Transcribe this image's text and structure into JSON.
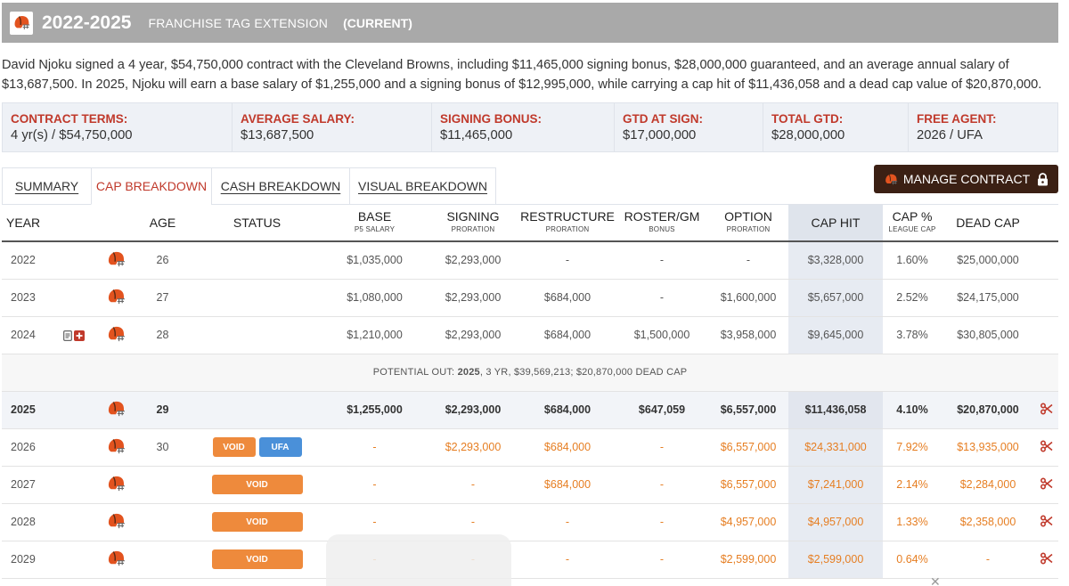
{
  "header": {
    "years": "2022-2025",
    "contract_type": "FRANCHISE TAG EXTENSION",
    "current": "(CURRENT)"
  },
  "description": {
    "line1": "David Njoku signed a 4 year, $54,750,000 contract with the Cleveland Browns, including $11,465,000 signing bonus, $28,000,000 guaranteed, and an average annual salary of",
    "line2": "$13,687,500. In 2025, Njoku will earn a base salary of $1,255,000 and a signing bonus of $12,995,000, while carrying a cap hit of $11,436,058 and a dead cap value of $20,870,000."
  },
  "terms": [
    {
      "label": "CONTRACT TERMS:",
      "value": "4 yr(s) / $54,750,000"
    },
    {
      "label": "AVERAGE SALARY:",
      "value": "$13,687,500"
    },
    {
      "label": "SIGNING BONUS:",
      "value": "$11,465,000"
    },
    {
      "label": "GTD AT SIGN:",
      "value": "$17,000,000"
    },
    {
      "label": "TOTAL GTD:",
      "value": "$28,000,000"
    },
    {
      "label": "FREE AGENT:",
      "value": "2026 / UFA"
    }
  ],
  "tabs": [
    {
      "label": "SUMMARY"
    },
    {
      "label": "CAP BREAKDOWN"
    },
    {
      "label": "CASH BREAKDOWN"
    },
    {
      "label": "VISUAL BREAKDOWN"
    }
  ],
  "manage_button": {
    "label": "MANAGE CONTRACT"
  },
  "columns": {
    "year": "YEAR",
    "age": "AGE",
    "status": "STATUS",
    "base": "BASE",
    "base_sub": "P5 SALARY",
    "signing": "SIGNING",
    "signing_sub": "PRORATION",
    "restructure": "RESTRUCTURE",
    "restructure_sub": "PRORATION",
    "roster": "ROSTER/GM",
    "roster_sub": "BONUS",
    "option": "OPTION",
    "option_sub": "PRORATION",
    "cap_hit": "CAP HIT",
    "cap_pct": "CAP %",
    "cap_pct_sub": "LEAGUE CAP",
    "dead_cap": "DEAD CAP"
  },
  "rows": [
    {
      "year": "2022",
      "age": "26",
      "base": "$1,035,000",
      "signing": "$2,293,000",
      "restructure": "-",
      "roster": "-",
      "option": "-",
      "cap_hit": "$3,328,000",
      "cap_pct": "1.60%",
      "dead_cap": "$25,000,000"
    },
    {
      "year": "2023",
      "age": "27",
      "base": "$1,080,000",
      "signing": "$2,293,000",
      "restructure": "$684,000",
      "roster": "-",
      "option": "$1,600,000",
      "cap_hit": "$5,657,000",
      "cap_pct": "2.52%",
      "dead_cap": "$24,175,000"
    },
    {
      "year": "2024",
      "age": "28",
      "base": "$1,210,000",
      "signing": "$2,293,000",
      "restructure": "$684,000",
      "roster": "$1,500,000",
      "option": "$3,958,000",
      "cap_hit": "$9,645,000",
      "cap_pct": "3.78%",
      "dead_cap": "$30,805,000"
    }
  ],
  "potential_out": {
    "label": "POTENTIAL OUT:",
    "year": "2025",
    "rest": ", 3 YR, $39,569,213; $20,870,000 DEAD CAP"
  },
  "current_row": {
    "year": "2025",
    "age": "29",
    "base": "$1,255,000",
    "signing": "$2,293,000",
    "restructure": "$684,000",
    "roster": "$647,059",
    "option": "$6,557,000",
    "cap_hit": "$11,436,058",
    "cap_pct": "4.10%",
    "dead_cap": "$20,870,000"
  },
  "future_rows": [
    {
      "year": "2026",
      "age": "30",
      "status": [
        "VOID",
        "UFA"
      ],
      "base": "-",
      "signing": "$2,293,000",
      "restructure": "$684,000",
      "roster": "-",
      "option": "$6,557,000",
      "cap_hit": "$24,331,000",
      "cap_pct": "7.92%",
      "dead_cap": "$13,935,000"
    },
    {
      "year": "2027",
      "age": "",
      "status": [
        "VOID"
      ],
      "base": "-",
      "signing": "-",
      "restructure": "$684,000",
      "roster": "-",
      "option": "$6,557,000",
      "cap_hit": "$7,241,000",
      "cap_pct": "2.14%",
      "dead_cap": "$2,284,000"
    },
    {
      "year": "2028",
      "age": "",
      "status": [
        "VOID"
      ],
      "base": "-",
      "signing": "-",
      "restructure": "-",
      "roster": "-",
      "option": "$4,957,000",
      "cap_hit": "$4,957,000",
      "cap_pct": "1.33%",
      "dead_cap": "$2,358,000"
    },
    {
      "year": "2029",
      "age": "",
      "status": [
        "VOID"
      ],
      "base": "-",
      "signing": "-",
      "restructure": "-",
      "roster": "-",
      "option": "$2,599,000",
      "cap_hit": "$2,599,000",
      "cap_pct": "0.64%",
      "dead_cap": "-"
    }
  ],
  "icons": {
    "team": "browns-helmet-icon",
    "cut": "scissors-icon",
    "lock": "lock-icon",
    "doc": "document-icon",
    "plus": "plus-icon"
  },
  "colors": {
    "accent_red": "#c0392b",
    "void_orange": "#ee8a3c",
    "ufa_blue": "#4a90d9",
    "manage_brown": "#3b2014",
    "header_gray": "#a9a9a9"
  }
}
